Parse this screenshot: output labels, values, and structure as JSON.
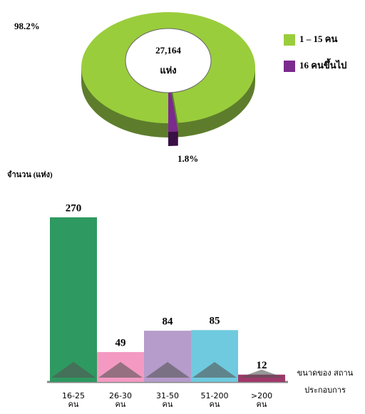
{
  "chart_data": [
    {
      "type": "pie",
      "center_label": "27,164",
      "center_sublabel": "แห่ง",
      "categories": [
        "1 – 15 คน",
        "16 คนขึ้นไป"
      ],
      "values": [
        98.2,
        1.8
      ],
      "value_labels": [
        "98.2%",
        "1.8%"
      ],
      "colors": [
        "#9acd3c",
        "#7b2a8e"
      ]
    },
    {
      "type": "bar",
      "y_label": "จำนวน (แห่ง)",
      "x_label": "ขนาดของ สถานประกอบการ",
      "categories": [
        "16-25 คน",
        "26-30 คน",
        "31-50 คน",
        "51-200 คน",
        ">200 คน"
      ],
      "values": [
        270,
        49,
        84,
        85,
        12
      ],
      "colors": [
        "#2e9960",
        "#f49ac2",
        "#b59ccb",
        "#6fcadf",
        "#a0386a"
      ]
    }
  ]
}
